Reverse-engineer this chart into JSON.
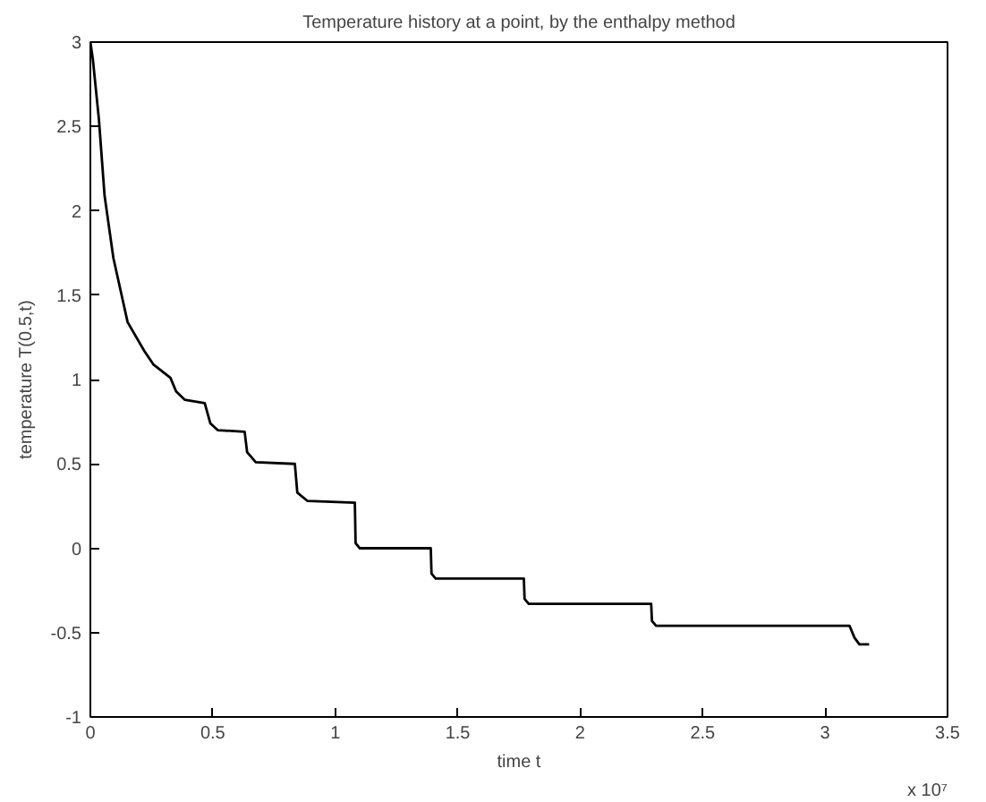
{
  "chart_data": {
    "type": "line",
    "title": "Temperature history at a point, by the enthalpy method",
    "xlabel": "time t",
    "ylabel": "temperature T(0.5,t)",
    "annotations": [
      "x 10⁷"
    ],
    "x": [
      0,
      0.01,
      0.035,
      0.058,
      0.094,
      0.152,
      0.22,
      0.257,
      0.327,
      0.35,
      0.385,
      0.467,
      0.49,
      0.52,
      0.63,
      0.64,
      0.675,
      0.835,
      0.845,
      0.887,
      1.08,
      1.083,
      1.1,
      1.39,
      1.393,
      1.41,
      1.77,
      1.773,
      1.79,
      2.29,
      2.293,
      2.31,
      3.1,
      3.12,
      3.14,
      3.18
    ],
    "series": [
      {
        "color": "#000000",
        "values": [
          3,
          2.9,
          2.54,
          2.09,
          1.72,
          1.34,
          1.17,
          1.09,
          1.01,
          0.93,
          0.88,
          0.86,
          0.74,
          0.7,
          0.69,
          0.57,
          0.51,
          0.5,
          0.33,
          0.28,
          0.27,
          0.03,
          0,
          0,
          -0.15,
          -0.18,
          -0.18,
          -0.3,
          -0.33,
          -0.33,
          -0.43,
          -0.46,
          -0.46,
          -0.53,
          -0.57,
          -0.57
        ]
      }
    ],
    "xlim": [
      0,
      3.5
    ],
    "ylim": [
      -1,
      3
    ],
    "xticks": [
      0,
      0.5,
      1,
      1.5,
      2,
      2.5,
      3,
      3.5
    ],
    "yticks": [
      -1,
      -0.5,
      0,
      0.5,
      1,
      1.5,
      2,
      2.5,
      3
    ],
    "grid": false,
    "marker": "none",
    "line_style": "solid"
  }
}
